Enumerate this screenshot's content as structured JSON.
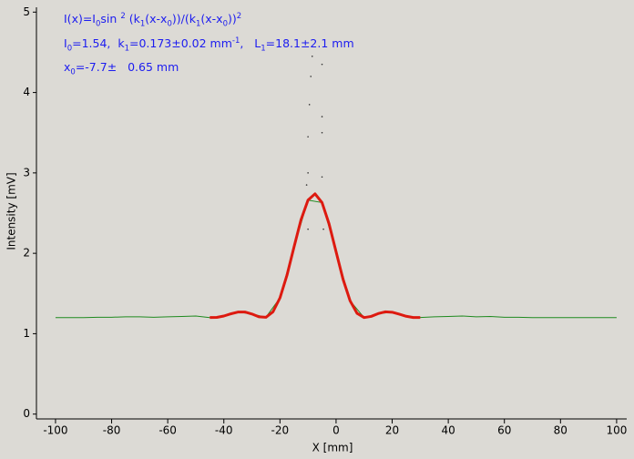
{
  "chart_data": {
    "type": "line",
    "xlabel": "X [mm]",
    "ylabel": "Intensity [mV]",
    "annotations": [
      [
        {
          "t": "I(x)=I"
        },
        {
          "t": "0",
          "sub": true
        },
        {
          "t": "sin "
        },
        {
          "t": "2",
          "sup": true
        },
        {
          "t": " (k"
        },
        {
          "t": "1",
          "sub": true
        },
        {
          "t": "(x-x"
        },
        {
          "t": "0",
          "sub": true
        },
        {
          "t": "))/(k"
        },
        {
          "t": "1",
          "sub": true
        },
        {
          "t": "(x-x"
        },
        {
          "t": "0",
          "sub": true
        },
        {
          "t": "))"
        },
        {
          "t": "2",
          "sup": true
        }
      ],
      [
        {
          "t": "I"
        },
        {
          "t": "0",
          "sub": true
        },
        {
          "t": "=1.54,  k"
        },
        {
          "t": "1",
          "sub": true
        },
        {
          "t": "=0.173±0.02 mm"
        },
        {
          "t": "-1",
          "sup": true
        },
        {
          "t": ",   L"
        },
        {
          "t": "1",
          "sub": true
        },
        {
          "t": "=18.1±2.1 mm"
        }
      ],
      [
        {
          "t": "x"
        },
        {
          "t": "0",
          "sub": true
        },
        {
          "t": "=-7.7±   0.65 mm"
        }
      ]
    ],
    "annotation_color": "#1c1cf0",
    "xlim": [
      -106.8,
      103.6
    ],
    "ylim": [
      -0.06,
      5.06
    ],
    "xticks": [
      -100,
      -80,
      -60,
      -40,
      -20,
      0,
      20,
      40,
      60,
      80,
      100
    ],
    "yticks": [
      0,
      1,
      2,
      3,
      4,
      5
    ],
    "series": [
      {
        "color": "#1f8a1f",
        "width": 1,
        "style": "line",
        "x": [
          -100,
          -95,
          -90,
          -85,
          -80,
          -75,
          -70,
          -65,
          -60,
          -55,
          -50,
          -45,
          -40,
          -35,
          -30,
          -25,
          -20,
          -15,
          -10,
          -5,
          0,
          5,
          10,
          15,
          20,
          25,
          30,
          35,
          40,
          45,
          50,
          55,
          60,
          65,
          70,
          75,
          80,
          85,
          90,
          95,
          100
        ],
        "values": [
          1.2,
          1.2,
          1.2,
          1.205,
          1.205,
          1.21,
          1.21,
          1.205,
          1.21,
          1.215,
          1.22,
          1.2,
          1.22,
          1.27,
          1.245,
          1.205,
          1.445,
          2.077,
          2.661,
          2.631,
          2.02,
          1.409,
          1.2,
          1.25,
          1.267,
          1.217,
          1.202,
          1.21,
          1.215,
          1.22,
          1.21,
          1.215,
          1.205,
          1.205,
          1.2,
          1.2,
          1.2,
          1.2,
          1.2,
          1.2,
          1.2
        ]
      },
      {
        "color": "#dd1a10",
        "width": 3,
        "style": "line",
        "x": [
          -45,
          -42.5,
          -40,
          -37.5,
          -35,
          -32.5,
          -30,
          -27.5,
          -25,
          -22.5,
          -20,
          -17.5,
          -15,
          -12.5,
          -10,
          -7.5,
          -5,
          -2.5,
          0,
          2.5,
          5,
          7.5,
          10,
          12.5,
          15,
          17.5,
          20,
          22.5,
          25,
          27.5,
          30
        ],
        "values": [
          1.201,
          1.203,
          1.22,
          1.247,
          1.269,
          1.27,
          1.245,
          1.21,
          1.204,
          1.271,
          1.445,
          1.727,
          2.077,
          2.417,
          2.661,
          2.74,
          2.631,
          2.367,
          2.02,
          1.676,
          1.409,
          1.253,
          1.201,
          1.215,
          1.25,
          1.272,
          1.267,
          1.243,
          1.217,
          1.202,
          1.202
        ]
      },
      {
        "color": "#333333",
        "style": "points",
        "x": [
          -10,
          -10,
          -9.5,
          -9,
          -8.5,
          -5,
          -5,
          -5,
          -5,
          -10,
          -4.5,
          -10.5
        ],
        "values": [
          3.0,
          3.45,
          3.85,
          4.2,
          4.45,
          4.35,
          3.7,
          3.5,
          2.95,
          2.3,
          2.3,
          2.85
        ]
      }
    ]
  }
}
